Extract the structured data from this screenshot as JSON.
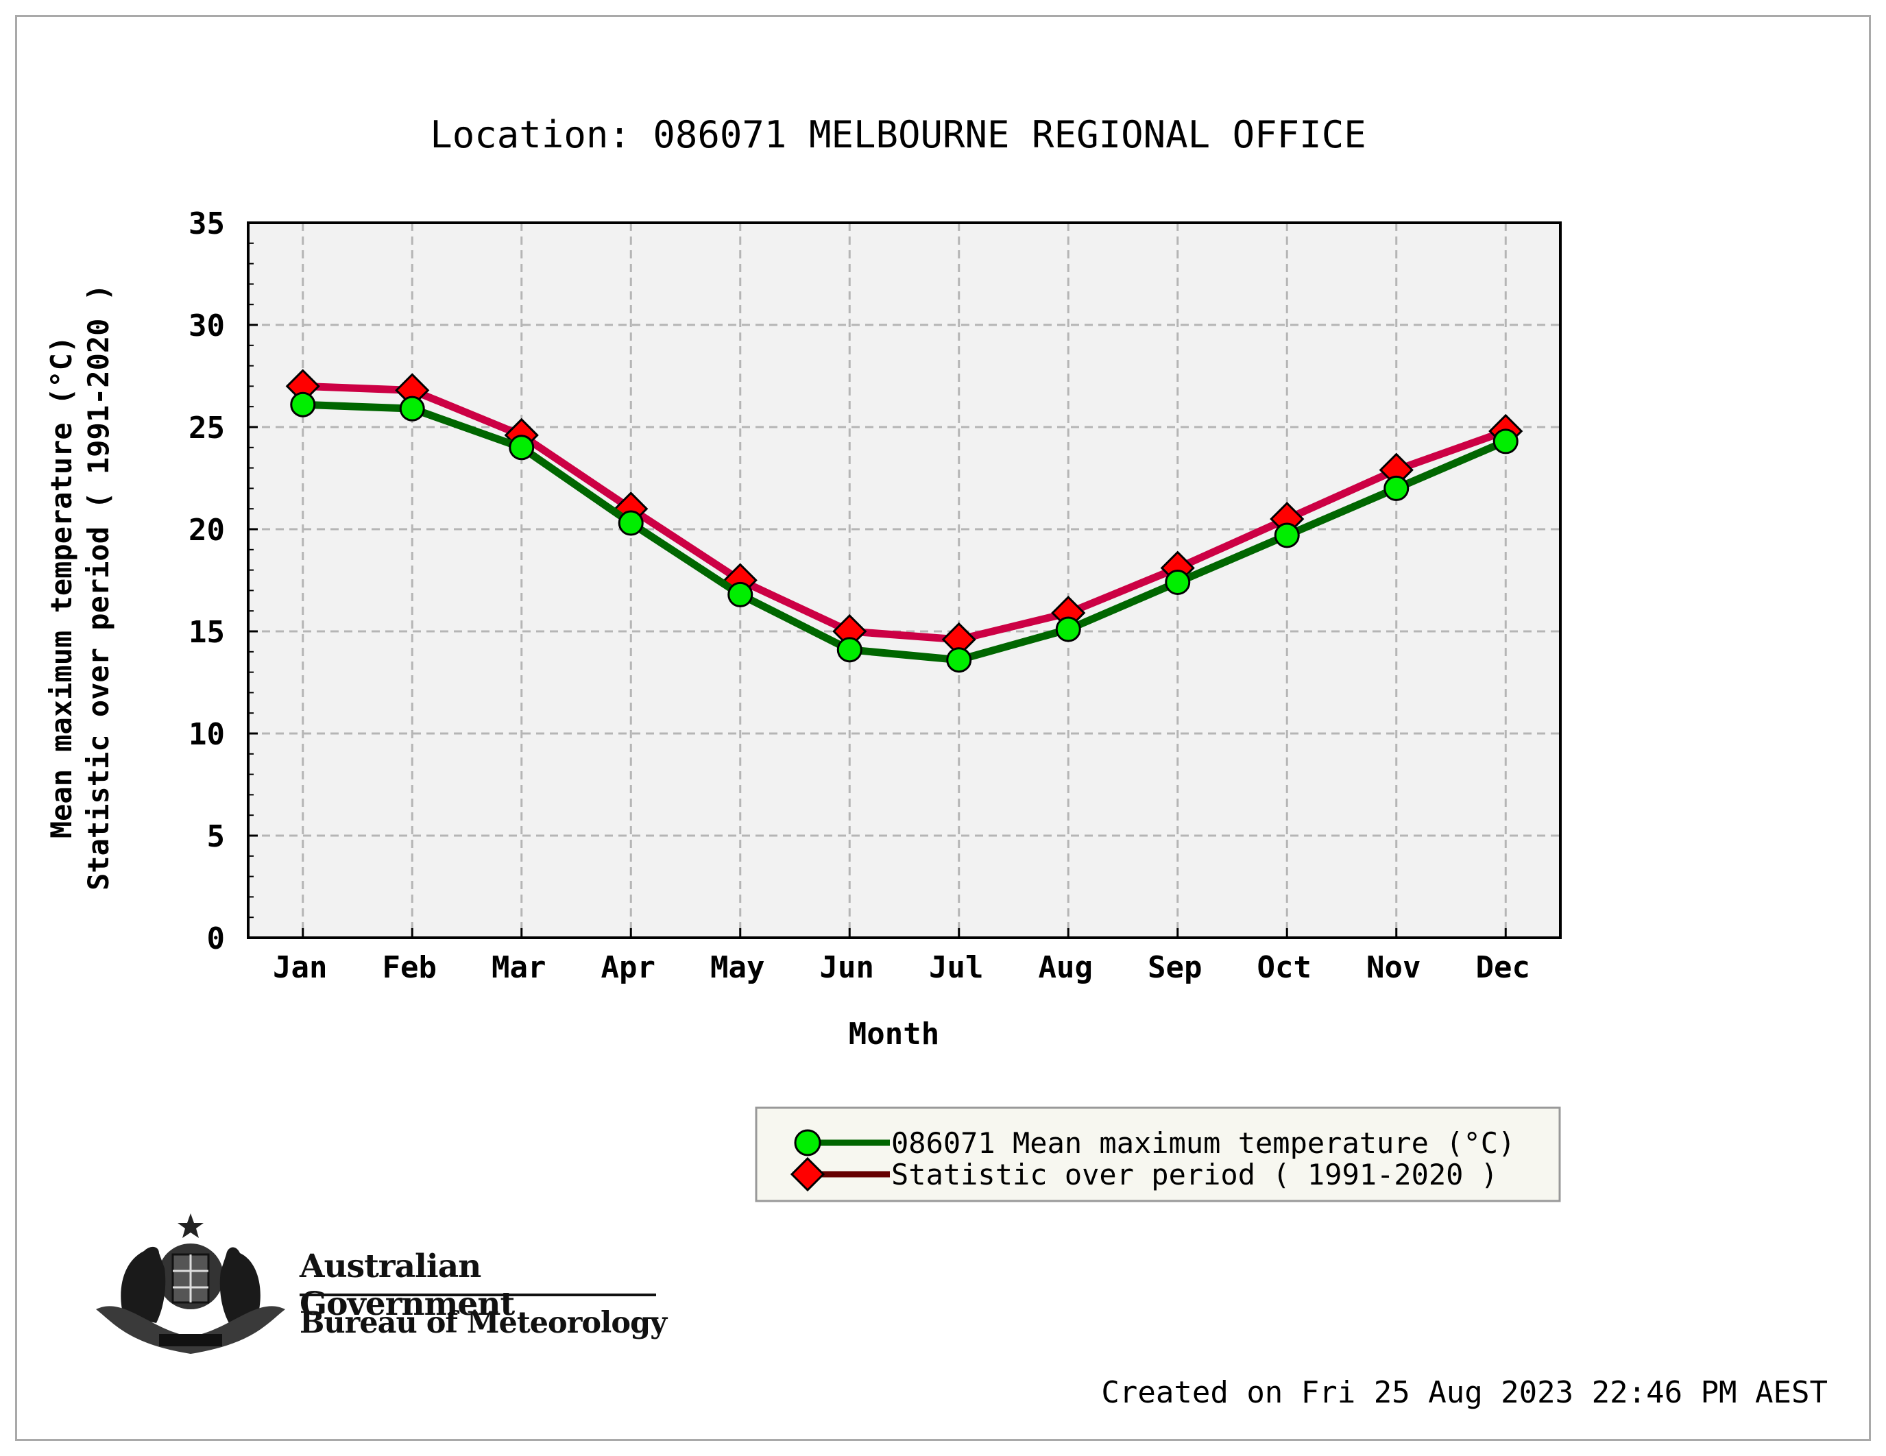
{
  "title": "Location: 086071 MELBOURNE REGIONAL OFFICE",
  "chart_data": {
    "type": "line",
    "title": "Location: 086071 MELBOURNE REGIONAL OFFICE",
    "xlabel": "Month",
    "ylabel_line1": "Mean maximum temperature (°C)",
    "ylabel_line2": "Statistic over period ( 1991-2020  )",
    "categories": [
      "Jan",
      "Feb",
      "Mar",
      "Apr",
      "May",
      "Jun",
      "Jul",
      "Aug",
      "Sep",
      "Oct",
      "Nov",
      "Dec"
    ],
    "ylim": [
      0,
      35
    ],
    "yticks": [
      "0",
      "5",
      "10",
      "15",
      "20",
      "25",
      "30",
      "35"
    ],
    "grid": true,
    "legend_position": "bottom-right",
    "series": [
      {
        "name": "Statistic over period ( 1991-2020  )",
        "color": "#cc0044",
        "marker": "diamond",
        "marker_color": "#ff0000",
        "values": [
          27.0,
          26.8,
          24.6,
          21.0,
          17.5,
          15.0,
          14.6,
          15.9,
          18.1,
          20.5,
          22.9,
          24.8
        ]
      },
      {
        "name": "086071 Mean maximum temperature (°C)",
        "color": "#006600",
        "marker": "circle",
        "marker_color": "#00ee00",
        "values": [
          26.1,
          25.9,
          24.0,
          20.3,
          16.8,
          14.1,
          13.6,
          15.1,
          17.4,
          19.7,
          22.0,
          24.3
        ]
      }
    ]
  },
  "legend": {
    "items": [
      {
        "label": "086071 Mean maximum temperature (°C)",
        "line_color": "#006600",
        "marker": "circle",
        "marker_color": "#00ee00"
      },
      {
        "label": "Statistic over period ( 1991-2020  )",
        "line_color": "#660000",
        "marker": "diamond",
        "marker_color": "#ff0000"
      }
    ]
  },
  "branding": {
    "gov": "Australian Government",
    "bom": "Bureau of Meteorology"
  },
  "footer": {
    "created": "Created on Fri 25 Aug 2023 22:46 PM AEST"
  }
}
